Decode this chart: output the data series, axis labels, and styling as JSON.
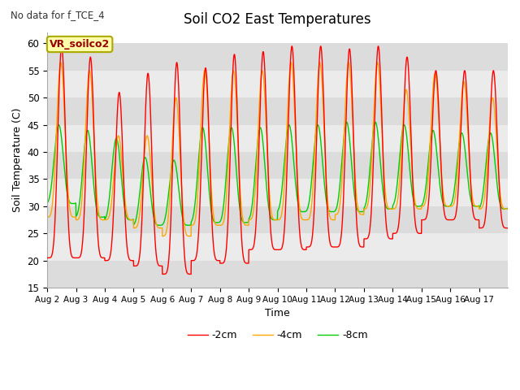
{
  "title": "Soil CO2 East Temperatures",
  "xlabel": "Time",
  "ylabel": "Soil Temperature (C)",
  "no_data_label": "No data for f_TCE_4",
  "box_label": "VR_soilco2",
  "ylim": [
    15,
    62
  ],
  "yticks": [
    15,
    20,
    25,
    30,
    35,
    40,
    45,
    50,
    55,
    60
  ],
  "xtick_labels": [
    "Aug 2",
    "Aug 3",
    "Aug 4",
    "Aug 5",
    "Aug 6",
    "Aug 7",
    "Aug 8",
    "Aug 9",
    "Aug 10",
    "Aug 11",
    "Aug 12",
    "Aug 13",
    "Aug 14",
    "Aug 15",
    "Aug 16",
    "Aug 17"
  ],
  "colors": {
    "2cm": "#ff0000",
    "4cm": "#ffa500",
    "8cm": "#00cc00"
  },
  "legend_labels": [
    "-2cm",
    "-4cm",
    "-8cm"
  ],
  "n_days": 16,
  "samples_per_day": 144,
  "series_2cm_peaks": [
    59.5,
    57.5,
    51.0,
    54.5,
    56.5,
    55.5,
    58.0,
    58.5,
    59.5,
    59.5,
    59.0,
    59.5,
    57.5,
    55.0,
    55.0,
    55.0
  ],
  "series_2cm_troughs": [
    20.5,
    20.5,
    20.0,
    19.0,
    17.5,
    20.0,
    19.5,
    22.0,
    22.0,
    22.5,
    22.5,
    24.0,
    25.0,
    27.5,
    27.5,
    26.0
  ],
  "series_4cm_peaks": [
    56.5,
    55.0,
    43.0,
    43.0,
    50.0,
    55.0,
    55.0,
    55.0,
    56.5,
    56.5,
    56.5,
    56.5,
    51.5,
    54.5,
    53.0,
    50.0
  ],
  "series_4cm_troughs": [
    28.0,
    27.5,
    27.5,
    26.0,
    24.5,
    26.5,
    26.5,
    27.5,
    27.5,
    27.5,
    28.5,
    29.5,
    29.5,
    30.0,
    30.0,
    29.5
  ],
  "series_8cm_peaks": [
    45.0,
    44.0,
    42.5,
    39.0,
    38.5,
    44.5,
    44.5,
    44.5,
    45.0,
    45.0,
    45.5,
    45.5,
    45.0,
    44.0,
    43.5,
    43.5
  ],
  "series_8cm_troughs": [
    30.5,
    28.0,
    27.5,
    26.5,
    26.5,
    27.0,
    27.0,
    27.5,
    29.0,
    29.0,
    29.0,
    29.5,
    30.0,
    30.0,
    30.0,
    29.5
  ],
  "phase_2cm": 0.0,
  "phase_4cm": 0.03,
  "phase_8cm": 0.1,
  "sharpness_2cm": 3.0,
  "sharpness_4cm": 2.5,
  "sharpness_8cm": 2.0,
  "bg_dark": "#dcdcdc",
  "bg_light": "#ebebeb"
}
